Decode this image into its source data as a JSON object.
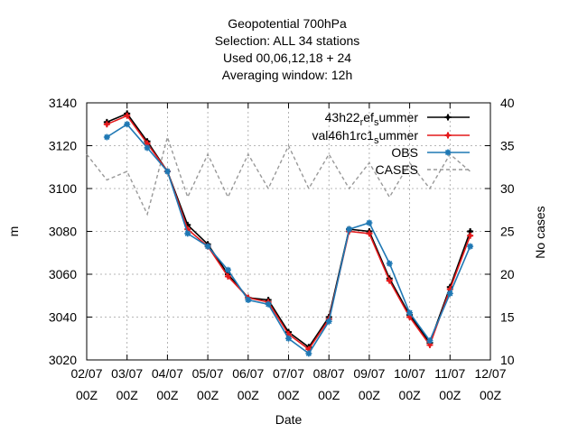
{
  "chart_data": {
    "type": "line",
    "title_lines": [
      "Geopotential 700hPa",
      "Selection: ALL     34 stations",
      "Used  00,06,12,18  + 24",
      "Averaging window: 12h"
    ],
    "xlabel": "Date",
    "ylabel": "m",
    "y2label": "No cases",
    "x_tick_labels": [
      [
        "02/07",
        "00Z"
      ],
      [
        "03/07",
        "00Z"
      ],
      [
        "04/07",
        "00Z"
      ],
      [
        "05/07",
        "00Z"
      ],
      [
        "06/07",
        "00Z"
      ],
      [
        "07/07",
        "00Z"
      ],
      [
        "08/07",
        "00Z"
      ],
      [
        "09/07",
        "00Z"
      ],
      [
        "10/07",
        "00Z"
      ],
      [
        "11/07",
        "00Z"
      ],
      [
        "12/07",
        "00Z"
      ]
    ],
    "xlim": [
      0,
      10
    ],
    "ylim": [
      3020,
      3140
    ],
    "y_ticks": [
      3020,
      3040,
      3060,
      3080,
      3100,
      3120,
      3140
    ],
    "y2lim": [
      10,
      40
    ],
    "y2_ticks": [
      10,
      15,
      20,
      25,
      30,
      35,
      40
    ],
    "grid": true,
    "legend_position": "top-right",
    "x": [
      0.5,
      1.0,
      1.5,
      2.0,
      2.5,
      3.0,
      3.5,
      4.0,
      4.5,
      5.0,
      5.5,
      6.0,
      6.5,
      7.0,
      7.5,
      8.0,
      8.5,
      9.0,
      9.5
    ],
    "series": [
      {
        "name": "43h22_ref_summer",
        "label_main": "43h22",
        "label_parts": [
          [
            "r",
            "sub"
          ],
          [
            "ef",
            "norm"
          ],
          [
            "s",
            "sub"
          ],
          [
            "ummer",
            "norm"
          ]
        ],
        "axis": "y1",
        "color": "#000000",
        "style": "solid",
        "marker": "plus",
        "values": [
          3131,
          3135,
          3122,
          3108,
          3083,
          3074,
          3060,
          3049,
          3048,
          3033,
          3026,
          3040,
          3081,
          3080,
          3058,
          3041,
          3028,
          3054,
          3080
        ]
      },
      {
        "name": "val46h1rc1_summer",
        "label_main": "val46h1rc1",
        "label_parts": [
          [
            "s",
            "sub"
          ],
          [
            "ummer",
            "norm"
          ]
        ],
        "axis": "y1",
        "color": "#e41a1c",
        "style": "solid",
        "marker": "plus",
        "values": [
          3130,
          3134,
          3121,
          3108,
          3081,
          3073,
          3059,
          3049,
          3047,
          3032,
          3025,
          3039,
          3080,
          3079,
          3057,
          3040,
          3027,
          3053,
          3078
        ]
      },
      {
        "name": "OBS",
        "label_main": "OBS",
        "label_parts": [],
        "axis": "y1",
        "color": "#1f78b4",
        "style": "solid",
        "marker": "star",
        "values": [
          3124,
          3130,
          3119,
          3108,
          3079,
          3073,
          3062,
          3048,
          3046,
          3030,
          3023,
          3038,
          3081,
          3084,
          3065,
          3042,
          3029,
          3051,
          3073
        ]
      },
      {
        "name": "CASES",
        "label_main": "CASES",
        "label_parts": [],
        "axis": "y2",
        "color": "#999999",
        "style": "dashed",
        "marker": "none",
        "x": [
          0.0,
          0.5,
          1.0,
          1.5,
          2.0,
          2.5,
          3.0,
          3.5,
          4.0,
          4.5,
          5.0,
          5.5,
          6.0,
          6.5,
          7.0,
          7.5,
          8.0,
          8.5,
          9.0,
          9.5
        ],
        "values": [
          34,
          31,
          32,
          27,
          36,
          29,
          34,
          29,
          34,
          30,
          35,
          30,
          34,
          30,
          33,
          29,
          33,
          30,
          34,
          32
        ]
      }
    ]
  }
}
